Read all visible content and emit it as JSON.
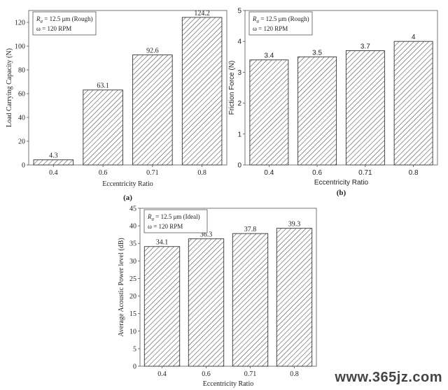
{
  "watermark": "www.365jz.com",
  "chart_data": [
    {
      "type": "bar",
      "panel_label": "(a)",
      "categories": [
        "0.4",
        "0.6",
        "0.71",
        "0.8"
      ],
      "values": [
        4.3,
        63.1,
        92.6,
        124.2
      ],
      "value_labels": [
        "4.3",
        "63.1",
        "92.6",
        "124.2"
      ],
      "xlabel": "Eccentricity Ratio",
      "ylabel": "Load Carrying Capacity (N)",
      "ylim": [
        0,
        130
      ],
      "yticks": [
        0,
        20,
        40,
        60,
        80,
        100,
        120
      ],
      "legend_lines": [
        "R_a = 12.5 μm (Rough)",
        "ω = 120 RPM"
      ],
      "legend_placement": "top-left",
      "bar_fill": "diagonal hatch",
      "grid": false
    },
    {
      "type": "bar",
      "panel_label": "(b)",
      "categories": [
        "0.4",
        "0.6",
        "0.71",
        "0.8"
      ],
      "values": [
        3.4,
        3.5,
        3.7,
        4
      ],
      "value_labels": [
        "3.4",
        "3.5",
        "3.7",
        "4"
      ],
      "xlabel": "Eccentricity Ratio",
      "ylabel": "Friction Force (N)",
      "ylim": [
        0,
        5
      ],
      "yticks": [
        0,
        1,
        2,
        3,
        4,
        5
      ],
      "legend_lines": [
        "R_a = 12.5 μm (Rough)",
        "ω = 120 RPM"
      ],
      "legend_placement": "top-left",
      "bar_fill": "diagonal hatch",
      "grid": false
    },
    {
      "type": "bar",
      "categories": [
        "0.4",
        "0.6",
        "0.71",
        "0.8"
      ],
      "values": [
        34.1,
        36.3,
        37.8,
        39.3
      ],
      "value_labels": [
        "34.1",
        "36.3",
        "37.8",
        "39.3"
      ],
      "xlabel": "Eccentricity Ratio",
      "ylabel": "Average Acoustic Power level (dB)",
      "ylim": [
        0,
        45
      ],
      "yticks": [
        0,
        5,
        10,
        15,
        20,
        25,
        30,
        35,
        40,
        45
      ],
      "legend_lines": [
        "R_a = 12.5 μm (Ideal)",
        "ω = 120 RPM"
      ],
      "legend_placement": "top-left",
      "bar_fill": "diagonal hatch",
      "grid": false
    }
  ]
}
